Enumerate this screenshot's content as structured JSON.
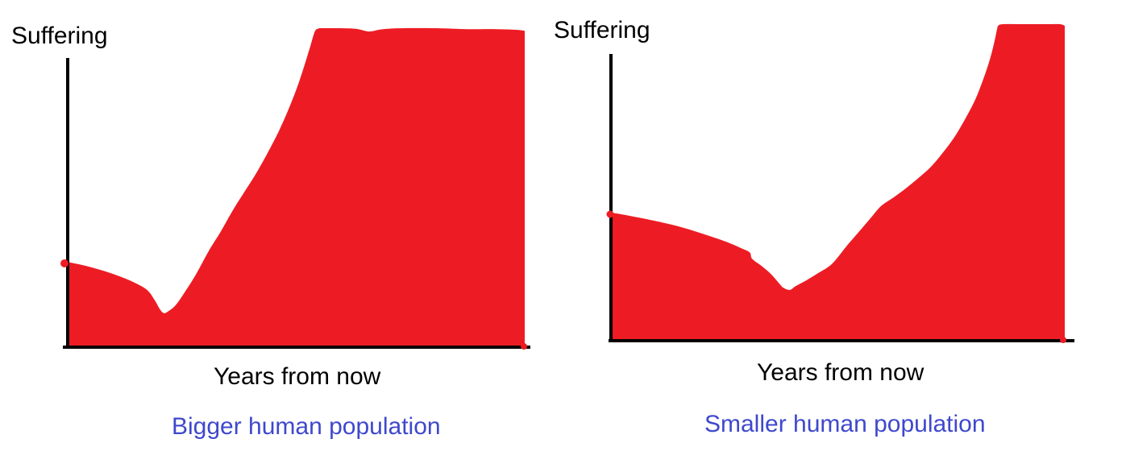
{
  "figure": {
    "background": "#ffffff"
  },
  "colors": {
    "area_fill": "#ed1c24",
    "axis": "#000000",
    "label_text": "#000000",
    "caption_text": "#3f48cc"
  },
  "chart_data": [
    {
      "type": "area",
      "title": "Bigger human population",
      "ylabel": "Suffering",
      "xlabel": "Years from now",
      "x_range": [
        0,
        1
      ],
      "y_range": [
        0,
        1
      ],
      "axes_style": "unlabeled qualitative hand-drawn sketch",
      "fill_color": "#ed1c24",
      "series": [
        {
          "name": "Suffering",
          "points": [
            [
              0.0,
              0.263
            ],
            [
              0.04,
              0.251
            ],
            [
              0.084,
              0.233
            ],
            [
              0.123,
              0.213
            ],
            [
              0.155,
              0.192
            ],
            [
              0.176,
              0.172
            ],
            [
              0.19,
              0.144
            ],
            [
              0.202,
              0.114
            ],
            [
              0.211,
              0.102
            ],
            [
              0.221,
              0.109
            ],
            [
              0.236,
              0.127
            ],
            [
              0.257,
              0.17
            ],
            [
              0.281,
              0.225
            ],
            [
              0.309,
              0.299
            ],
            [
              0.334,
              0.357
            ],
            [
              0.362,
              0.428
            ],
            [
              0.383,
              0.476
            ],
            [
              0.41,
              0.537
            ],
            [
              0.436,
              0.603
            ],
            [
              0.462,
              0.676
            ],
            [
              0.483,
              0.744
            ],
            [
              0.501,
              0.81
            ],
            [
              0.517,
              0.878
            ],
            [
              0.531,
              0.944
            ],
            [
              0.541,
              0.99
            ],
            [
              0.549,
              0.999
            ],
            [
              0.553,
              1.0
            ],
            [
              0.57,
              1.0
            ],
            [
              0.594,
              1.0
            ],
            [
              0.63,
              0.998
            ],
            [
              0.652,
              0.991
            ],
            [
              0.664,
              0.99
            ],
            [
              0.69,
              0.997
            ],
            [
              0.735,
              1.0
            ],
            [
              0.805,
              1.0
            ],
            [
              0.875,
              0.997
            ],
            [
              0.937,
              0.997
            ],
            [
              0.981,
              0.995
            ],
            [
              1.0,
              0.992
            ]
          ]
        }
      ]
    },
    {
      "type": "area",
      "title": "Smaller human population",
      "ylabel": "Suffering",
      "xlabel": "Years from now",
      "x_range": [
        0,
        1
      ],
      "y_range": [
        0,
        1
      ],
      "axes_style": "unlabeled qualitative hand-drawn sketch",
      "fill_color": "#ed1c24",
      "series": [
        {
          "name": "Suffering",
          "points": [
            [
              0.0,
              0.402
            ],
            [
              0.039,
              0.392
            ],
            [
              0.092,
              0.377
            ],
            [
              0.146,
              0.359
            ],
            [
              0.199,
              0.336
            ],
            [
              0.252,
              0.31
            ],
            [
              0.288,
              0.288
            ],
            [
              0.306,
              0.275
            ],
            [
              0.311,
              0.255
            ],
            [
              0.332,
              0.232
            ],
            [
              0.353,
              0.206
            ],
            [
              0.373,
              0.173
            ],
            [
              0.38,
              0.163
            ],
            [
              0.394,
              0.156
            ],
            [
              0.407,
              0.168
            ],
            [
              0.43,
              0.186
            ],
            [
              0.456,
              0.209
            ],
            [
              0.487,
              0.239
            ],
            [
              0.519,
              0.295
            ],
            [
              0.545,
              0.338
            ],
            [
              0.572,
              0.384
            ],
            [
              0.59,
              0.415
            ],
            [
              0.602,
              0.43
            ],
            [
              0.625,
              0.452
            ],
            [
              0.652,
              0.481
            ],
            [
              0.682,
              0.517
            ],
            [
              0.705,
              0.547
            ],
            [
              0.732,
              0.593
            ],
            [
              0.758,
              0.644
            ],
            [
              0.781,
              0.7
            ],
            [
              0.803,
              0.761
            ],
            [
              0.821,
              0.827
            ],
            [
              0.835,
              0.888
            ],
            [
              0.845,
              0.944
            ],
            [
              0.851,
              0.985
            ],
            [
              0.854,
              0.996
            ],
            [
              0.865,
              1.0
            ],
            [
              0.909,
              1.0
            ],
            [
              0.963,
              1.0
            ],
            [
              0.989,
              1.0
            ],
            [
              1.0,
              0.995
            ]
          ]
        }
      ]
    }
  ]
}
